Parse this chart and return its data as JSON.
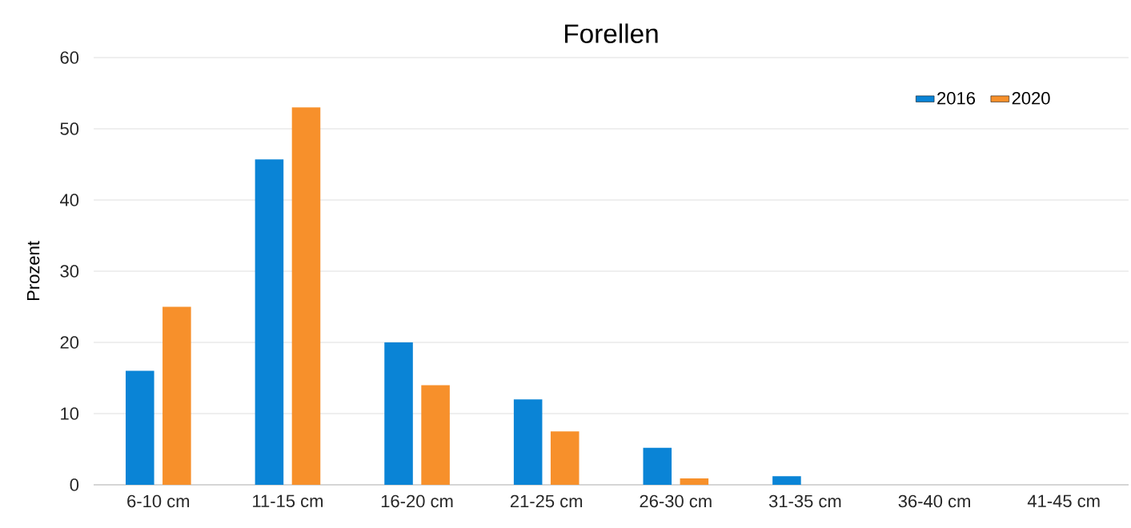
{
  "chart_data": {
    "type": "bar",
    "title": "Forellen",
    "ylabel": "Prozent",
    "categories": [
      "6-10 cm",
      "11-15 cm",
      "16-20 cm",
      "21-25 cm",
      "26-30 cm",
      "31-35 cm",
      "36-40 cm",
      "41-45 cm"
    ],
    "series": [
      {
        "name": "2016",
        "color": "#0a84d6",
        "values": [
          16,
          45.7,
          20,
          12,
          5.2,
          1.2,
          0,
          0
        ]
      },
      {
        "name": "2020",
        "color": "#f7902b",
        "values": [
          25,
          53,
          14,
          7.5,
          0.9,
          0,
          0,
          0
        ]
      }
    ],
    "ylim": [
      0,
      60
    ],
    "yticks": [
      0,
      10,
      20,
      30,
      40,
      50,
      60
    ],
    "grid": "y",
    "legend": "top right"
  }
}
